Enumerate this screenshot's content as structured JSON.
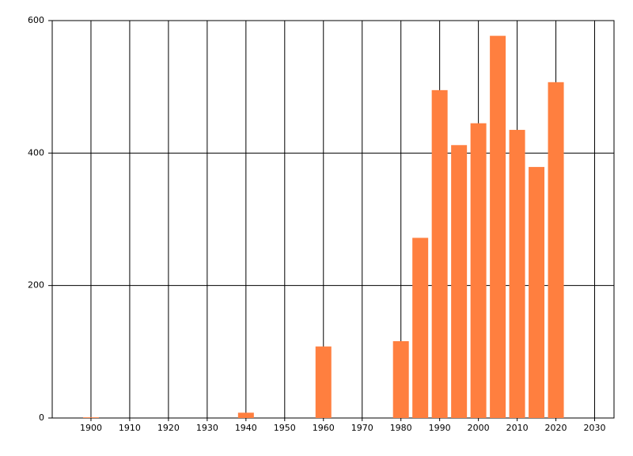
{
  "chart_data": {
    "type": "bar",
    "x": [
      1900,
      1940,
      1960,
      1980,
      1985,
      1990,
      1995,
      2000,
      2005,
      2010,
      2015,
      2020
    ],
    "values": [
      1,
      8,
      108,
      116,
      272,
      495,
      412,
      445,
      577,
      435,
      379,
      507
    ],
    "color": "#ff7f3f",
    "xlim": [
      1890,
      2035
    ],
    "xticks": [
      1900,
      1910,
      1920,
      1930,
      1940,
      1950,
      1960,
      1970,
      1980,
      1990,
      2000,
      2010,
      2020,
      2030
    ],
    "ylim": [
      0,
      600
    ],
    "yticks": [
      0,
      200,
      400,
      600
    ],
    "grid": true
  }
}
